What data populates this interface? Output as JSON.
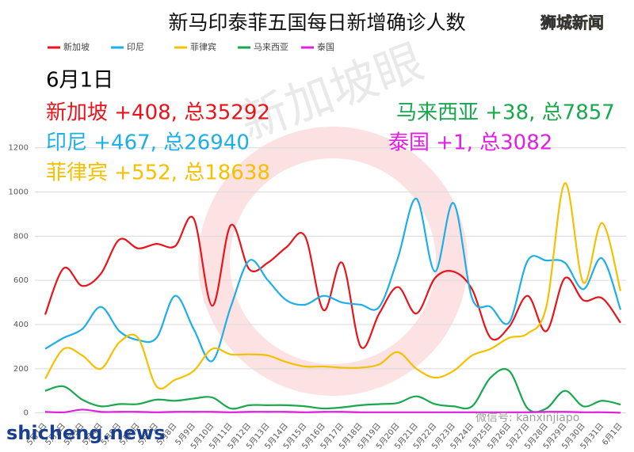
{
  "chart_data": {
    "type": "line",
    "title": "新马印泰菲五国每日新增确诊人数",
    "badge": "狮城新闻",
    "annotations": [
      {
        "text": "6月1日",
        "color": "#000000"
      },
      {
        "text": "新加坡 +408, 总35292",
        "color": "#e8141b"
      },
      {
        "text": "马来西亚 +38, 总7857",
        "color": "#1aa84f"
      },
      {
        "text": "印尼 +467, 总26940",
        "color": "#1eaee8"
      },
      {
        "text": "泰国 +1, 总3082",
        "color": "#e020e0"
      },
      {
        "text": "菲律宾 +552, 总18638",
        "color": "#f5c000"
      }
    ],
    "watermarks": [
      "新加坡眼",
      "shicheng.news",
      "微信号: kanxinjiapo"
    ],
    "categories": [
      "5月1日",
      "5月2日",
      "5月3日",
      "5月4日",
      "5月5日",
      "5月6日",
      "5月7日",
      "5月8日",
      "5月9日",
      "5月10日",
      "5月11日",
      "5月12日",
      "5月13日",
      "5月14日",
      "5月15日",
      "5月16日",
      "5月17日",
      "5月18日",
      "5月19日",
      "5月20日",
      "5月21日",
      "5月22日",
      "5月23日",
      "5月24日",
      "5月25日",
      "5月26日",
      "5月27日",
      "5月28日",
      "5月29日",
      "5月30日",
      "5月31日",
      "6月1日"
    ],
    "series": [
      {
        "name": "新加坡",
        "color": "#e8141b",
        "values": [
          445,
          655,
          575,
          630,
          785,
          745,
          765,
          755,
          880,
          485,
          850,
          650,
          680,
          750,
          800,
          465,
          680,
          300,
          450,
          570,
          450,
          610,
          640,
          560,
          340,
          390,
          530,
          370,
          610,
          510,
          520,
          408
        ]
      },
      {
        "name": "印尼",
        "color": "#1eaee8",
        "values": [
          290,
          340,
          380,
          480,
          370,
          330,
          340,
          530,
          380,
          235,
          480,
          690,
          600,
          510,
          490,
          530,
          500,
          490,
          480,
          700,
          970,
          640,
          950,
          520,
          480,
          410,
          690,
          690,
          680,
          560,
          700,
          467
        ]
      },
      {
        "name": "菲律宾",
        "color": "#f5c000",
        "values": [
          155,
          290,
          260,
          200,
          320,
          340,
          120,
          150,
          190,
          290,
          265,
          265,
          260,
          230,
          210,
          210,
          205,
          205,
          220,
          275,
          200,
          160,
          190,
          260,
          290,
          340,
          360,
          480,
          1040,
          590,
          860,
          552
        ]
      },
      {
        "name": "马来西亚",
        "color": "#1aa84f",
        "values": [
          100,
          120,
          60,
          30,
          40,
          40,
          60,
          55,
          65,
          70,
          20,
          35,
          35,
          35,
          30,
          20,
          25,
          35,
          40,
          45,
          75,
          40,
          30,
          30,
          160,
          190,
          20,
          20,
          100,
          30,
          55,
          38
        ]
      },
      {
        "name": "泰国",
        "color": "#e020e0",
        "values": [
          5,
          3,
          15,
          5,
          5,
          5,
          3,
          5,
          5,
          5,
          3,
          5,
          5,
          5,
          3,
          5,
          5,
          3,
          3,
          3,
          3,
          3,
          3,
          3,
          3,
          3,
          3,
          5,
          5,
          3,
          3,
          1
        ]
      }
    ],
    "ylim": [
      -30,
      1260
    ],
    "yticks": [
      0,
      200,
      400,
      600,
      800,
      1000,
      1200
    ],
    "grid": true
  }
}
